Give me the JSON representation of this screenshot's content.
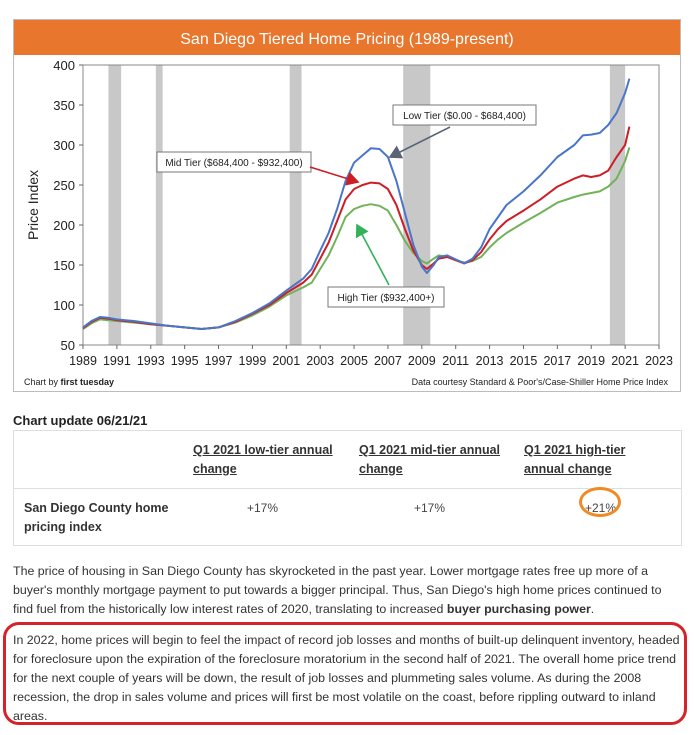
{
  "chart_data": {
    "type": "line",
    "title": "San Diego Tiered Home Pricing (1989-present)",
    "ylabel": "Price Index",
    "xlim": [
      1989,
      2023
    ],
    "ylim": [
      50,
      400
    ],
    "x_ticks": [
      1989,
      1991,
      1993,
      1995,
      1997,
      1999,
      2001,
      2003,
      2005,
      2007,
      2009,
      2011,
      2013,
      2015,
      2017,
      2019,
      2021,
      2023
    ],
    "y_ticks": [
      50,
      100,
      150,
      200,
      250,
      300,
      350,
      400
    ],
    "recessions": [
      [
        1990.5,
        1991.25
      ],
      [
        1993.3,
        1993.7
      ],
      [
        2001.2,
        2001.9
      ],
      [
        2007.9,
        2009.5
      ],
      [
        2020.1,
        2021.0
      ]
    ],
    "series": [
      {
        "name": "Low Tier ($0.00 - $684,400)",
        "color": "#4a76c9",
        "x": [
          1989,
          1989.5,
          1990,
          1990.5,
          1991,
          1991.5,
          1992,
          1993,
          1994,
          1995,
          1996,
          1997,
          1998,
          1999,
          2000,
          2001,
          2002,
          2002.5,
          2003,
          2003.5,
          2004,
          2004.5,
          2005,
          2005.5,
          2006,
          2006.5,
          2007,
          2007.5,
          2008,
          2008.5,
          2009,
          2009.3,
          2009.7,
          2010,
          2010.5,
          2011,
          2011.5,
          2012,
          2012.5,
          2013,
          2013.5,
          2014,
          2015,
          2016,
          2017,
          2018,
          2018.5,
          2019,
          2019.5,
          2020,
          2020.5,
          2021,
          2021.25
        ],
        "values": [
          72,
          80,
          85,
          84,
          82,
          81,
          80,
          77,
          74,
          72,
          70,
          72,
          80,
          90,
          102,
          118,
          133,
          145,
          168,
          190,
          220,
          255,
          278,
          287,
          296,
          295,
          285,
          255,
          215,
          175,
          148,
          140,
          150,
          160,
          162,
          157,
          152,
          158,
          172,
          195,
          210,
          225,
          242,
          262,
          285,
          300,
          312,
          313,
          315,
          325,
          340,
          365,
          383
        ]
      },
      {
        "name": "Mid Tier ($684,400 - $932,400)",
        "color": "#cc1e24",
        "x": [
          1989,
          1989.5,
          1990,
          1990.5,
          1991,
          1991.5,
          1992,
          1993,
          1994,
          1995,
          1996,
          1997,
          1998,
          1999,
          2000,
          2001,
          2002,
          2002.5,
          2003,
          2003.5,
          2004,
          2004.5,
          2005,
          2005.5,
          2006,
          2006.5,
          2007,
          2007.5,
          2008,
          2008.5,
          2009,
          2009.3,
          2009.7,
          2010,
          2010.5,
          2011,
          2011.5,
          2012,
          2012.5,
          2013,
          2013.5,
          2014,
          2015,
          2016,
          2017,
          2018,
          2018.5,
          2019,
          2019.5,
          2020,
          2020.5,
          2021,
          2021.25
        ],
        "values": [
          71,
          79,
          84,
          83,
          81,
          80,
          79,
          76,
          74,
          72,
          70,
          72,
          79,
          89,
          100,
          115,
          128,
          138,
          158,
          178,
          205,
          232,
          245,
          250,
          253,
          252,
          245,
          225,
          195,
          168,
          150,
          145,
          152,
          158,
          160,
          156,
          152,
          156,
          166,
          182,
          195,
          205,
          218,
          232,
          248,
          258,
          262,
          260,
          262,
          268,
          285,
          300,
          323
        ]
      },
      {
        "name": "High Tier ($932,400+)",
        "color": "#70b35a",
        "x": [
          1989,
          1989.5,
          1990,
          1990.5,
          1991,
          1991.5,
          1992,
          1993,
          1994,
          1995,
          1996,
          1997,
          1998,
          1999,
          2000,
          2001,
          2002,
          2002.5,
          2003,
          2003.5,
          2004,
          2004.5,
          2005,
          2005.5,
          2006,
          2006.5,
          2007,
          2007.5,
          2008,
          2008.5,
          2009,
          2009.3,
          2009.7,
          2010,
          2010.5,
          2011,
          2011.5,
          2012,
          2012.5,
          2013,
          2013.5,
          2014,
          2015,
          2016,
          2017,
          2018,
          2018.5,
          2019,
          2019.5,
          2020,
          2020.5,
          2021,
          2021.25
        ],
        "values": [
          70,
          77,
          82,
          81,
          80,
          79,
          78,
          76,
          74,
          72,
          70,
          72,
          78,
          87,
          98,
          112,
          122,
          128,
          145,
          162,
          185,
          210,
          220,
          224,
          226,
          224,
          218,
          200,
          180,
          165,
          155,
          152,
          158,
          162,
          160,
          156,
          153,
          155,
          160,
          172,
          182,
          190,
          203,
          215,
          228,
          235,
          238,
          240,
          242,
          248,
          258,
          280,
          297
        ]
      }
    ],
    "annotations": [
      {
        "text": "Low Tier ($0.00 - $684,400)",
        "series": 0
      },
      {
        "text": "Mid Tier ($684,400 - $932,400)",
        "series": 1
      },
      {
        "text": "High Tier ($932,400+)",
        "series": 2
      }
    ],
    "credit_left_prefix": "Chart by ",
    "credit_left_bold": "first tuesday",
    "credit_right": "Data courtesy Standard & Poor's/Case-Shiller Home Price Index",
    "title_bar_color": "#e8762c",
    "grid": false
  },
  "update_label": "Chart update 06/21/21",
  "table": {
    "headers": [
      "Q1 2021 low-tier annual change",
      "Q1 2021 mid-tier annual change",
      "Q1 2021 high-tier annual change"
    ],
    "row_label": "San Diego County home pricing index",
    "values": [
      "+17%",
      "+17%",
      "+21%"
    ],
    "highlight_color": "#f08a24"
  },
  "paragraph1": {
    "text": "The price of housing in San Diego County has skyrocketed in the past year. Lower mortgage rates free up more of a buyer's monthly mortgage payment to put towards a bigger principal. Thus, San Diego's high home prices continued to find fuel from the historically low interest rates of 2020, translating to increased ",
    "bold": "buyer purchasing power",
    "end": "."
  },
  "paragraph2": "In 2022, home prices will begin to feel the impact of record job losses and months of built-up delinquent inventory, headed for foreclosure upon the expiration of the foreclosure moratorium in the second half of 2021. The overall home price trend for the next couple of years will be down, the result of job losses and plummeting sales volume. As during the 2008 recession, the drop in sales volume and prices will first be most volatile on the coast, before rippling outward to inland areas.",
  "callout_color": "#d6232a"
}
